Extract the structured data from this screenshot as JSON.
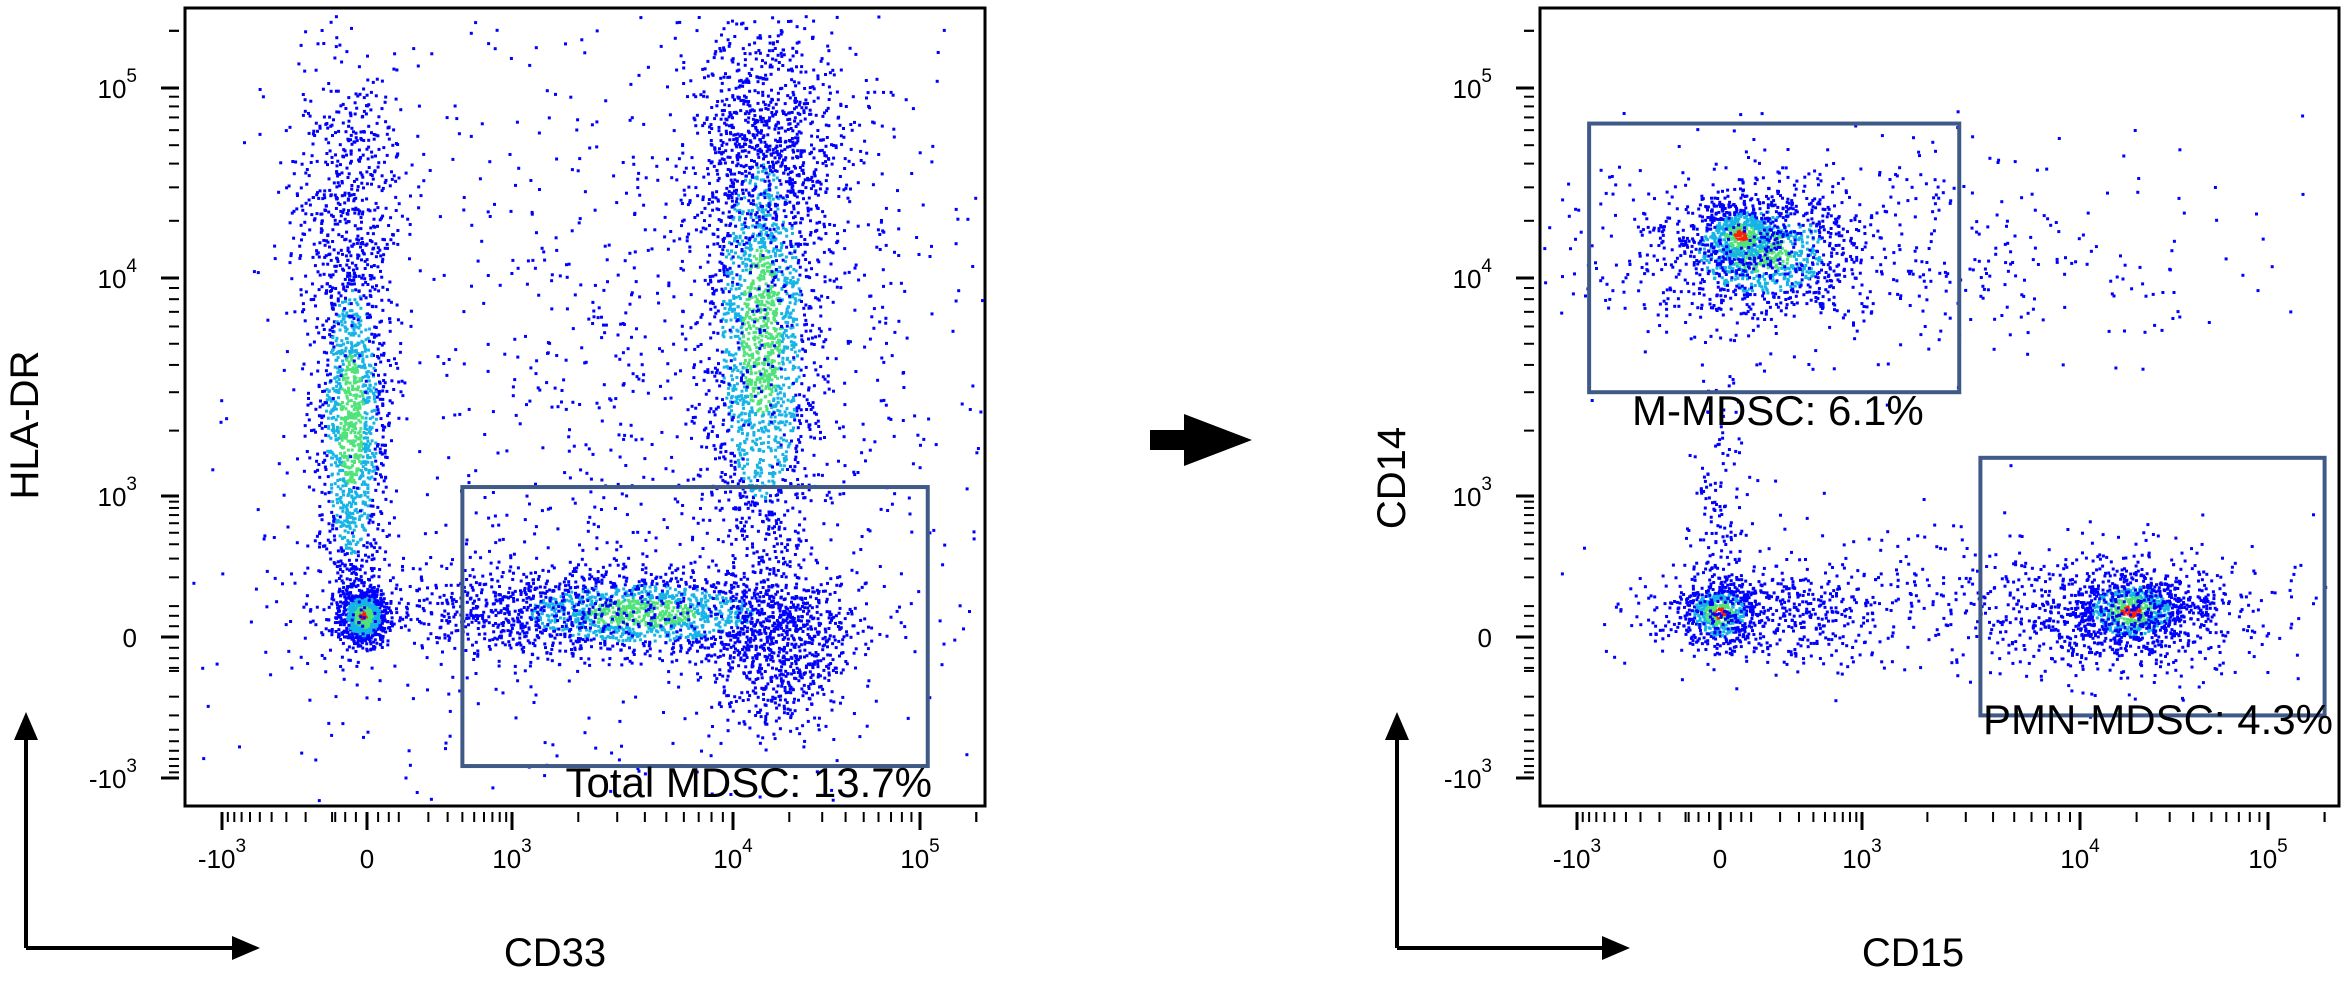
{
  "colors": {
    "frame": "#000000",
    "gate": "#3f5a86",
    "density_low": "#0000ff",
    "density_mid": "#16b4e6",
    "density_high": "#4fe37a",
    "density_peak": "#ff1e00",
    "arrow": "#000000"
  },
  "arrow_icon": "right-arrow-icon",
  "axis_arrow_icon": "corner-axes-arrow-icon",
  "chart_data": [
    {
      "type": "scatter",
      "title": "",
      "xlabel": "CD33",
      "ylabel": "HLA-DR",
      "scale": "biexponential",
      "xlim": [
        -2000,
        200000
      ],
      "ylim": [
        -1500,
        250000
      ],
      "x_ticks": [
        {
          "base": "-10",
          "exp": "3",
          "value": -1000
        },
        {
          "base": "0",
          "exp": "",
          "value": 0
        },
        {
          "base": "10",
          "exp": "3",
          "value": 1000
        },
        {
          "base": "10",
          "exp": "4",
          "value": 10000
        },
        {
          "base": "10",
          "exp": "5",
          "value": 100000
        }
      ],
      "y_ticks": [
        {
          "base": "-10",
          "exp": "3",
          "value": -1000
        },
        {
          "base": "0",
          "exp": "",
          "value": 0
        },
        {
          "base": "10",
          "exp": "3",
          "value": 1000
        },
        {
          "base": "10",
          "exp": "4",
          "value": 10000
        },
        {
          "base": "10",
          "exp": "5",
          "value": 100000
        }
      ],
      "populations": [
        {
          "x": 0,
          "y": 0,
          "density": "peak"
        },
        {
          "x": 0,
          "y": 8000,
          "density": "high"
        },
        {
          "x": 15000,
          "y": 15000,
          "density": "high"
        },
        {
          "x": 3000,
          "y": 0,
          "density": "mid"
        }
      ],
      "gates": [
        {
          "label": "Total MDSC: 13.7%",
          "percent": 13.7,
          "x_range": [
            400,
            110000
          ],
          "y_range": [
            -800,
            1100
          ]
        }
      ]
    },
    {
      "type": "scatter",
      "title": "",
      "xlabel": "CD15",
      "ylabel": "CD14",
      "scale": "biexponential",
      "xlim": [
        -2000,
        200000
      ],
      "ylim": [
        -1500,
        250000
      ],
      "x_ticks": [
        {
          "base": "-10",
          "exp": "3",
          "value": -1000
        },
        {
          "base": "0",
          "exp": "",
          "value": 0
        },
        {
          "base": "10",
          "exp": "3",
          "value": 1000
        },
        {
          "base": "10",
          "exp": "4",
          "value": 10000
        },
        {
          "base": "10",
          "exp": "5",
          "value": 100000
        }
      ],
      "y_ticks": [
        {
          "base": "-10",
          "exp": "3",
          "value": -1000
        },
        {
          "base": "0",
          "exp": "",
          "value": 0
        },
        {
          "base": "10",
          "exp": "3",
          "value": 1000
        },
        {
          "base": "10",
          "exp": "4",
          "value": 10000
        },
        {
          "base": "10",
          "exp": "5",
          "value": 100000
        }
      ],
      "populations": [
        {
          "x": 200,
          "y": 12000,
          "density": "high"
        },
        {
          "x": 0,
          "y": 0,
          "density": "mid"
        },
        {
          "x": 25000,
          "y": 0,
          "density": "peak"
        }
      ],
      "gates": [
        {
          "label": "M-MDSC: 6.1%",
          "percent": 6.1,
          "x_range": [
            -800,
            2800
          ],
          "y_range": [
            3000,
            65000
          ]
        },
        {
          "label": "PMN-MDSC: 4.3%",
          "percent": 4.3,
          "x_range": [
            3500,
            200000
          ],
          "y_range": [
            -300,
            1500
          ]
        }
      ]
    }
  ]
}
